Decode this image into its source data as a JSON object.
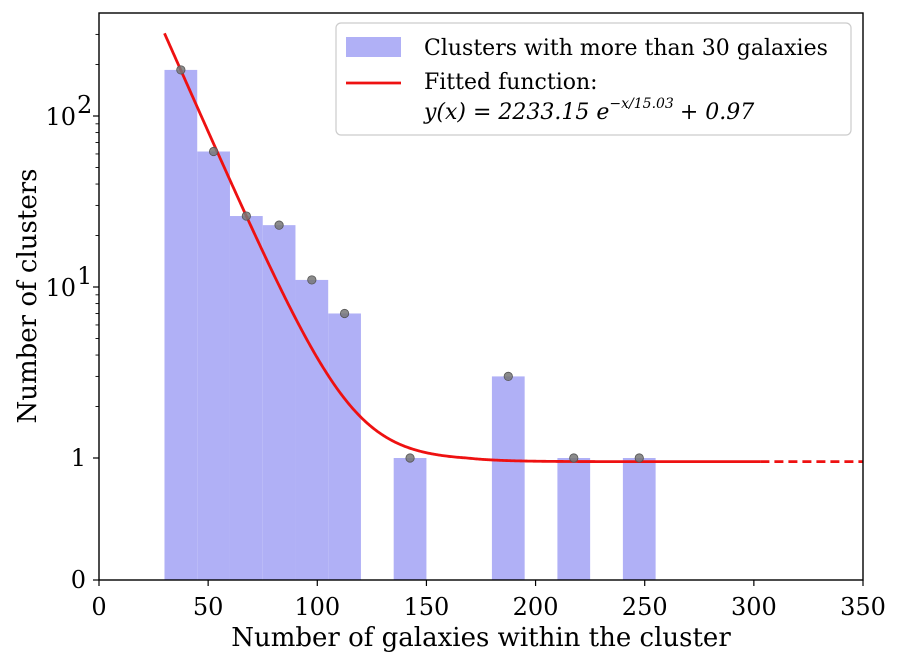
{
  "chart_data": {
    "type": "bar",
    "xlabel": "Number of galaxies within the cluster",
    "ylabel": "Number of clusters",
    "xlim": [
      0,
      350
    ],
    "yscale": "symlog",
    "y_ticks": [
      {
        "value": 0,
        "label": "0"
      },
      {
        "value": 1,
        "label": "1"
      },
      {
        "value": 10,
        "label": "10",
        "exp": "1"
      },
      {
        "value": 100,
        "label": "10",
        "exp": "2"
      }
    ],
    "x_ticks": [
      "0",
      "50",
      "100",
      "150",
      "200",
      "250",
      "300",
      "350"
    ],
    "bin_width": 15,
    "histogram": {
      "name": "Clusters with more than 30 galaxies",
      "color": "#b0b0f6",
      "bins": [
        {
          "left": 30,
          "right": 45,
          "count": 186
        },
        {
          "left": 45,
          "right": 60,
          "count": 62
        },
        {
          "left": 60,
          "right": 75,
          "count": 26
        },
        {
          "left": 75,
          "right": 90,
          "count": 23
        },
        {
          "left": 90,
          "right": 105,
          "count": 11
        },
        {
          "left": 105,
          "right": 120,
          "count": 7
        },
        {
          "left": 135,
          "right": 150,
          "count": 1
        },
        {
          "left": 180,
          "right": 195,
          "count": 3
        },
        {
          "left": 210,
          "right": 225,
          "count": 1
        },
        {
          "left": 240,
          "right": 255,
          "count": 1
        }
      ]
    },
    "points": [
      {
        "x": 37.5,
        "y": 186
      },
      {
        "x": 52.5,
        "y": 62
      },
      {
        "x": 67.5,
        "y": 26
      },
      {
        "x": 82.5,
        "y": 23
      },
      {
        "x": 97.5,
        "y": 11
      },
      {
        "x": 112.5,
        "y": 7
      },
      {
        "x": 142.5,
        "y": 1
      },
      {
        "x": 187.5,
        "y": 3
      },
      {
        "x": 217.5,
        "y": 1
      },
      {
        "x": 247.5,
        "y": 1
      }
    ],
    "fit": {
      "name": "Fitted function:",
      "formula_prefix": "y(x) = 2233.15 e",
      "formula_exponent": "−x/15.03",
      "formula_suffix": "+ 0.97",
      "A": 2233.15,
      "tau": 15.03,
      "c": 0.97,
      "x_start": 30,
      "x_solid_end": 303,
      "x_dashed_end": 350,
      "color": "#ee1111"
    },
    "legend_position": "top-right"
  }
}
